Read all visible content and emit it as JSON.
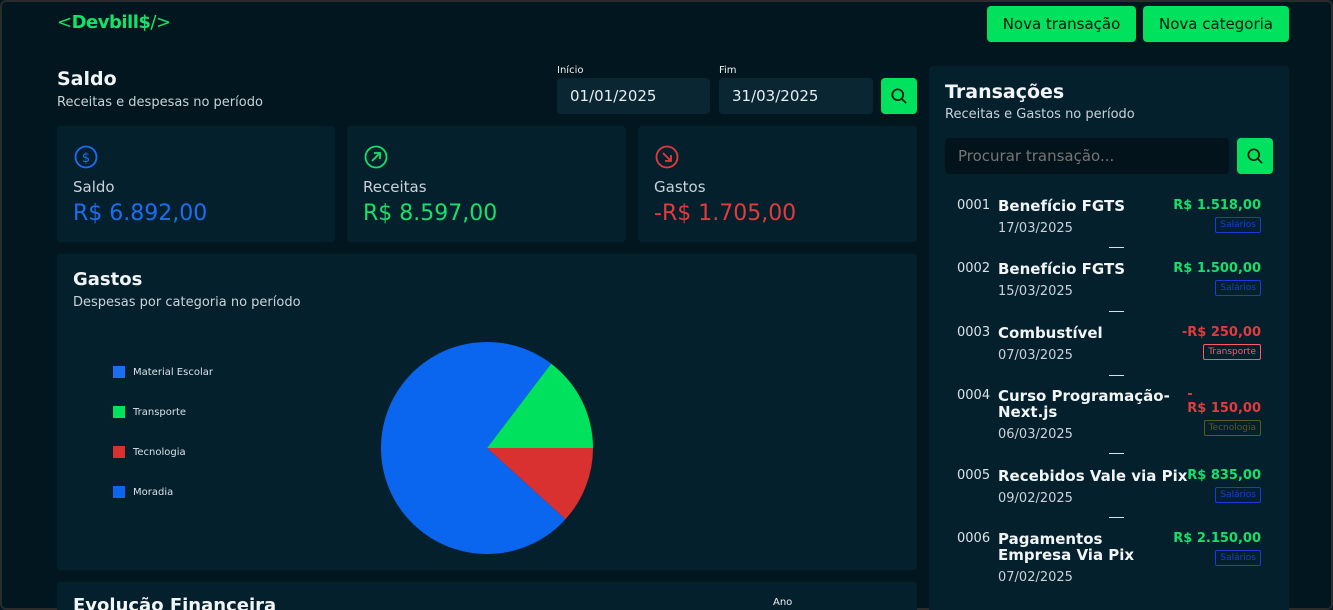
{
  "app": {
    "logo_open": "<",
    "logo_name": "Devbill$",
    "logo_close": "/>"
  },
  "header": {
    "new_transaction": "Nova transação",
    "new_category": "Nova categoria"
  },
  "balance_section": {
    "title": "Saldo",
    "subtitle": "Receitas e despesas no período"
  },
  "filters": {
    "start_label": "Início",
    "start_value": "01/01/2025",
    "end_label": "Fim",
    "end_value": "31/03/2025"
  },
  "summary": {
    "balance": {
      "label": "Saldo",
      "value": "R$ 6.892,00",
      "color": "#1a6ff0"
    },
    "income": {
      "label": "Receitas",
      "value": "R$ 8.597,00",
      "color": "#16e06a"
    },
    "expenses": {
      "label": "Gastos",
      "value": "-R$ 1.705,00",
      "color": "#e23b3b"
    }
  },
  "expenses_chart": {
    "title": "Gastos",
    "subtitle": "Despesas por categoria no período"
  },
  "chart_data": {
    "type": "pie",
    "slices": [
      {
        "label": "Material Escolar",
        "value": 0,
        "color": "#1a6ff0"
      },
      {
        "label": "Transporte",
        "value": 250,
        "color": "#00e15e"
      },
      {
        "label": "Tecnologia",
        "value": 200,
        "color": "#d93030"
      },
      {
        "label": "Moradia",
        "value": 1255,
        "color": "#0a66ee"
      }
    ],
    "legend_position": "left"
  },
  "evolution": {
    "title": "Evolução Financeira",
    "year_label": "Ano"
  },
  "transactions_panel": {
    "title": "Transações",
    "subtitle": "Receitas e Gastos no período",
    "search_placeholder": "Procurar transação...",
    "items": [
      {
        "id": "0001",
        "name": "Benefício FGTS",
        "date": "17/03/2025",
        "amount": "R$ 1.518,00",
        "type": "income",
        "category": "Salários"
      },
      {
        "id": "0002",
        "name": "Benefício FGTS",
        "date": "15/03/2025",
        "amount": "R$ 1.500,00",
        "type": "income",
        "category": "Salários"
      },
      {
        "id": "0003",
        "name": "Combustível",
        "date": "07/03/2025",
        "amount": "-R$ 250,00",
        "type": "expense",
        "category": "Transporte"
      },
      {
        "id": "0004",
        "name": "Curso Programação- Next.js",
        "date": "06/03/2025",
        "amount": "-\nR$ 150,00",
        "type": "expense",
        "category": "Tecnologia"
      },
      {
        "id": "0005",
        "name": "Recebidos Vale via Pix",
        "date": "09/02/2025",
        "amount": "R$ 835,00",
        "type": "income",
        "category": "Salários"
      },
      {
        "id": "0006",
        "name": "Pagamentos Empresa Via Pix",
        "date": "07/02/2025",
        "amount": "R$ 2.150,00",
        "type": "income",
        "category": "Salários"
      }
    ]
  },
  "colors": {
    "background": "#01161f",
    "card": "#04202d",
    "accent": "#00e15e",
    "income": "#16e06a",
    "expense": "#e23b3b",
    "tag_salarios": "#1b3bd8",
    "tag_transporte": "#ff5a6a",
    "tag_tecnologia": "#5a5a1e"
  }
}
